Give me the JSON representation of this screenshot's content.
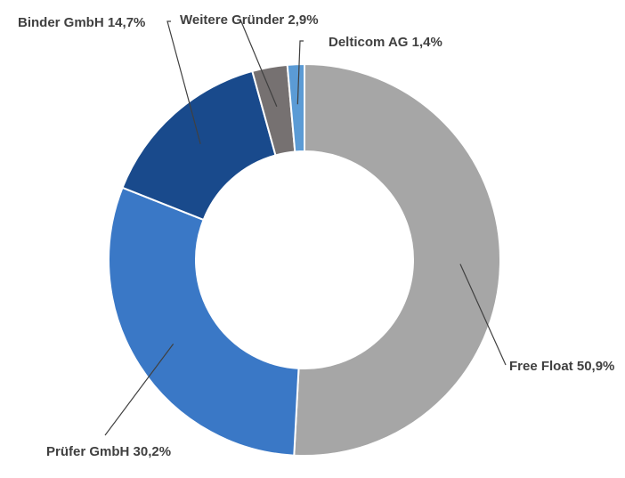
{
  "chart_data": {
    "type": "pie",
    "variant": "donut",
    "title": "",
    "slices": [
      {
        "label": "Free Float 50,9%",
        "name": "Free Float",
        "value": 50.9,
        "color": "#a6a6a6"
      },
      {
        "label": "Prüfer GmbH 30,2%",
        "name": "Prüfer GmbH",
        "value": 30.2,
        "color": "#3a78c6"
      },
      {
        "label": "Binder GmbH 14,7%",
        "name": "Binder GmbH",
        "value": 14.7,
        "color": "#194a8c"
      },
      {
        "label": "Weitere Gründer 2,9%",
        "name": "Weitere Gründer",
        "value": 2.9,
        "color": "#767171"
      },
      {
        "label": "Delticom AG 1,4%",
        "name": "Delticom AG",
        "value": 1.4,
        "color": "#5b9bd5"
      }
    ],
    "legend": "none",
    "data_labels": "outside with leader lines"
  }
}
